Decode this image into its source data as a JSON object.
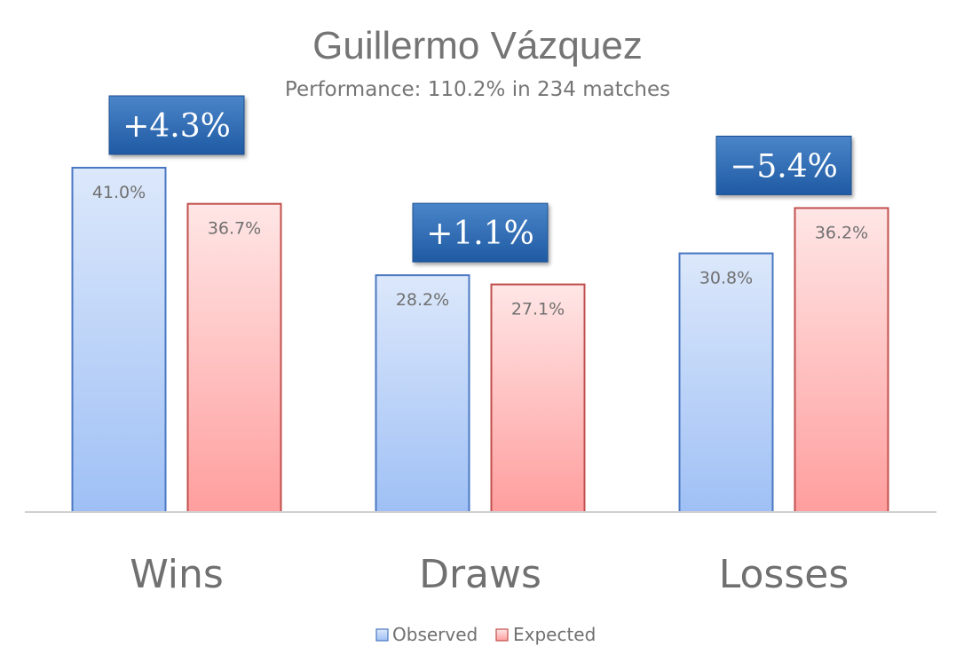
{
  "chart_data": {
    "type": "bar",
    "title": "Guillermo Vázquez",
    "subtitle": "Performance: 110.2% in 234 matches",
    "categories": [
      "Wins",
      "Draws",
      "Losses"
    ],
    "series": [
      {
        "name": "Observed",
        "values": [
          41.0,
          28.2,
          30.8
        ],
        "labels": [
          "41.0%",
          "28.2%",
          "30.8%"
        ]
      },
      {
        "name": "Expected",
        "values": [
          36.7,
          27.1,
          36.2
        ],
        "labels": [
          "36.7%",
          "27.1%",
          "36.2%"
        ]
      }
    ],
    "differences": [
      "+4.3%",
      "+1.1%",
      "−5.4%"
    ],
    "ylim": [
      0,
      41.0
    ],
    "grid": false,
    "legend_position": "bottom",
    "colors": {
      "observed_fill_top": "#dce8fb",
      "observed_fill_bottom": "#9fc0f5",
      "observed_stroke": "#4a78c2",
      "expected_fill_top": "#ffe6e6",
      "expected_fill_bottom": "#ff9e9e",
      "expected_stroke": "#c0504d",
      "badge_top": "#4a85c9",
      "badge_bottom": "#1f5aa3",
      "text": "#707070"
    }
  }
}
